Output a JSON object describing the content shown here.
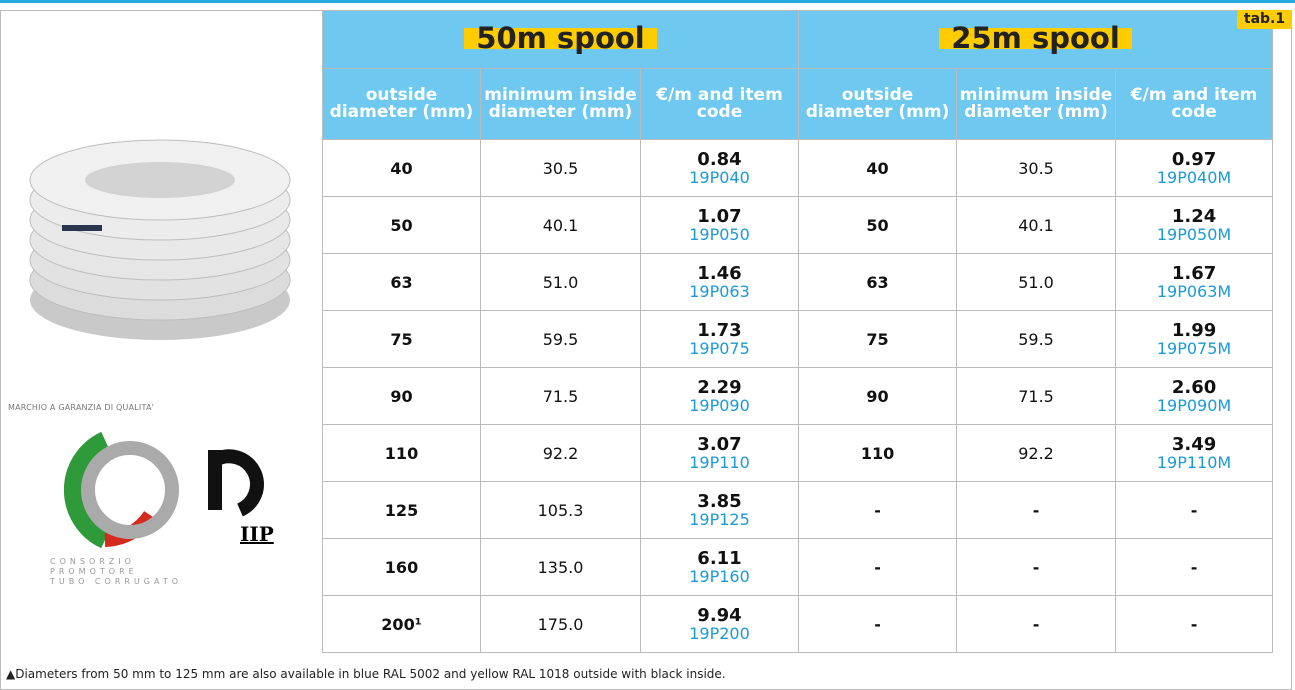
{
  "side": {
    "quality_mark": "MARCHIO A GARANZIA DI QUALITA'",
    "consortium": [
      "CONSORZIO",
      "PROMOTORE",
      "TUBO CORRUGATO"
    ],
    "logo_text": "IIP"
  },
  "tag": "tab.1",
  "table": {
    "groups": [
      "50m spool",
      "25m spool"
    ],
    "columns": [
      "outside diameter (mm)",
      "minimum inside diameter (mm)",
      "€/m and item code",
      "outside diameter (mm)",
      "minimum inside diameter (mm)",
      "€/m and item code"
    ],
    "rows": [
      [
        "40",
        "30.5",
        {
          "price": "0.84",
          "code": "19P040"
        },
        "40",
        "30.5",
        {
          "price": "0.97",
          "code": "19P040M"
        }
      ],
      [
        "50",
        "40.1",
        {
          "price": "1.07",
          "code": "19P050"
        },
        "50",
        "40.1",
        {
          "price": "1.24",
          "code": "19P050M"
        }
      ],
      [
        "63",
        "51.0",
        {
          "price": "1.46",
          "code": "19P063"
        },
        "63",
        "51.0",
        {
          "price": "1.67",
          "code": "19P063M"
        }
      ],
      [
        "75",
        "59.5",
        {
          "price": "1.73",
          "code": "19P075"
        },
        "75",
        "59.5",
        {
          "price": "1.99",
          "code": "19P075M"
        }
      ],
      [
        "90",
        "71.5",
        {
          "price": "2.29",
          "code": "19P090"
        },
        "90",
        "71.5",
        {
          "price": "2.60",
          "code": "19P090M"
        }
      ],
      [
        "110",
        "92.2",
        {
          "price": "3.07",
          "code": "19P110"
        },
        "110",
        "92.2",
        {
          "price": "3.49",
          "code": "19P110M"
        }
      ],
      [
        "125",
        "105.3",
        {
          "price": "3.85",
          "code": "19P125"
        },
        "-",
        "-",
        "-"
      ],
      [
        "160",
        "135.0",
        {
          "price": "6.11",
          "code": "19P160"
        },
        "-",
        "-",
        "-"
      ],
      [
        "200¹",
        "175.0",
        {
          "price": "9.94",
          "code": "19P200"
        },
        "-",
        "-",
        "-"
      ]
    ]
  },
  "footnote": "Diameters from 50 mm to 125 mm are also available in blue RAL 5002 and yellow RAL 1018 outside with black inside."
}
